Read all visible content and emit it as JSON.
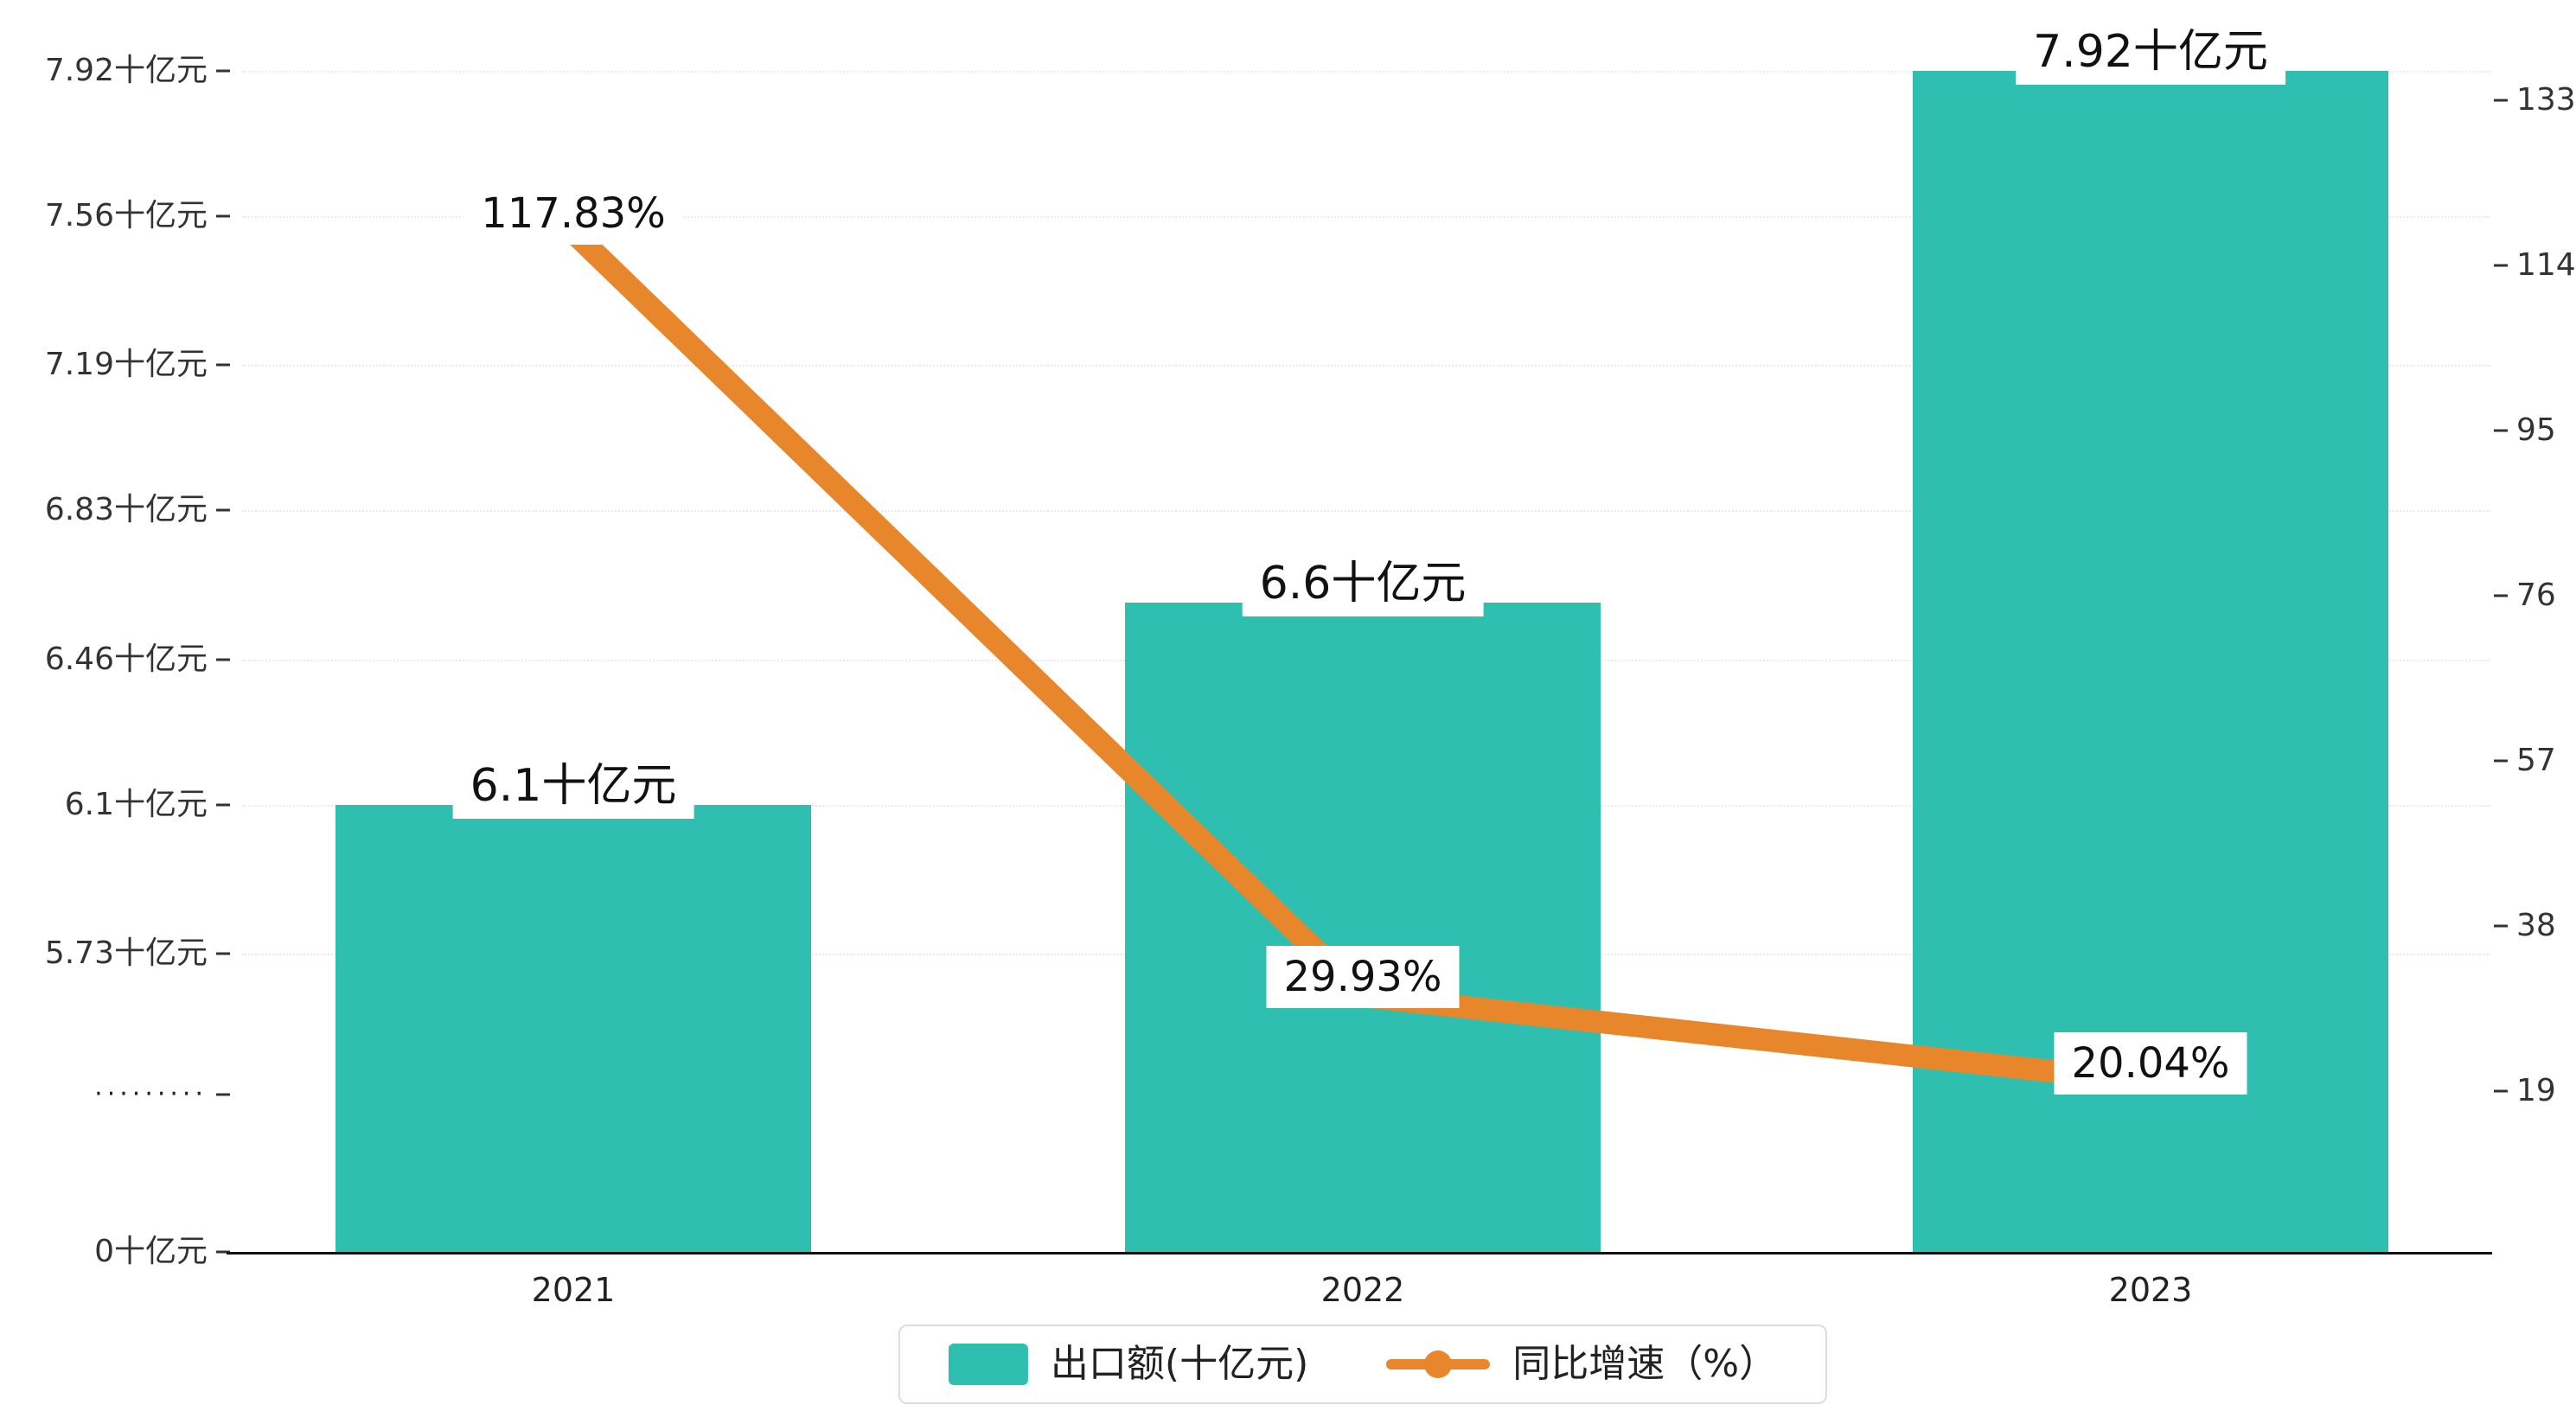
{
  "chart_data": {
    "type": "bar",
    "categories": [
      "2021",
      "2022",
      "2023"
    ],
    "series": [
      {
        "name": "出口额(十亿元)",
        "type": "bar",
        "values": [
          6.1,
          6.6,
          7.92
        ],
        "labels": [
          "6.1十亿元",
          "6.6十亿元",
          "7.92十亿元"
        ],
        "color": "#2fbfb0"
      },
      {
        "name": "同比增速（%）",
        "type": "line",
        "values": [
          117.83,
          29.93,
          20.04
        ],
        "labels": [
          "117.83%",
          "29.93%",
          "20.04%"
        ],
        "color": "#e8862c"
      }
    ],
    "yaxis_left": {
      "title": "",
      "tick_values": [
        7.92,
        7.56,
        7.19,
        6.83,
        6.46,
        6.1,
        5.73,
        0
      ],
      "tick_labels": [
        "7.92十亿元",
        "7.56十亿元",
        "7.19十亿元",
        "6.83十亿元",
        "6.46十亿元",
        "6.1十亿元",
        "5.73十亿元",
        "0十亿元"
      ],
      "break_marker": "·········",
      "has_break": true
    },
    "yaxis_right": {
      "tick_values": [
        133,
        114,
        95,
        76,
        57,
        38,
        19
      ],
      "tick_labels": [
        "133",
        "114",
        "95",
        "76",
        "57",
        "38",
        "19"
      ]
    },
    "legend": [
      {
        "label": "出口额(十亿元)",
        "marker": "bar-swatch",
        "color": "#2fbfb0"
      },
      {
        "label": "同比增速（%）",
        "marker": "line-dot",
        "color": "#e8862c"
      }
    ],
    "grid": "dotted-horizontal",
    "title": ""
  }
}
